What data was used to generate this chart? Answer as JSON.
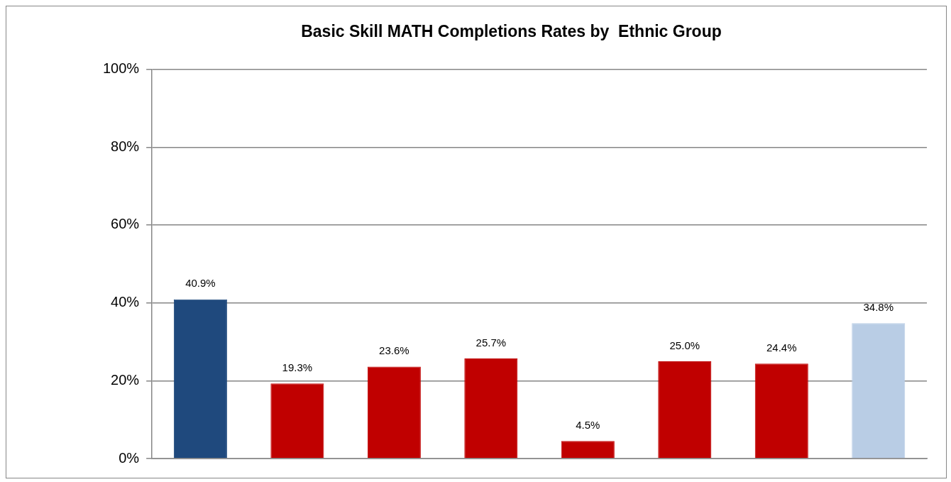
{
  "chart_data": {
    "type": "bar",
    "title": "Basic Skill MATH Completions Rates by  Ethnic Group",
    "categories": [
      null,
      null,
      null,
      null,
      null,
      null,
      null,
      null
    ],
    "values": [
      40.9,
      19.3,
      23.6,
      25.7,
      4.5,
      25.0,
      24.4,
      34.8
    ],
    "colors": [
      "#1f497d",
      "#c00000",
      "#c00000",
      "#c00000",
      "#c00000",
      "#c00000",
      "#c00000",
      "#b9cde5"
    ],
    "value_labels": [
      "40.9%",
      "19.3%",
      "23.6%",
      "25.7%",
      "4.5%",
      "25.0%",
      "24.4%",
      "34.8%"
    ],
    "ylim": [
      0,
      100
    ],
    "yticks": [
      {
        "value": 0,
        "label": "0%"
      },
      {
        "value": 20,
        "label": "20%"
      },
      {
        "value": 40,
        "label": "40%"
      },
      {
        "value": 60,
        "label": "60%"
      },
      {
        "value": 80,
        "label": "80%"
      },
      {
        "value": 100,
        "label": "100%"
      }
    ],
    "grid": "y",
    "legend": false,
    "tick_labels": "y"
  }
}
